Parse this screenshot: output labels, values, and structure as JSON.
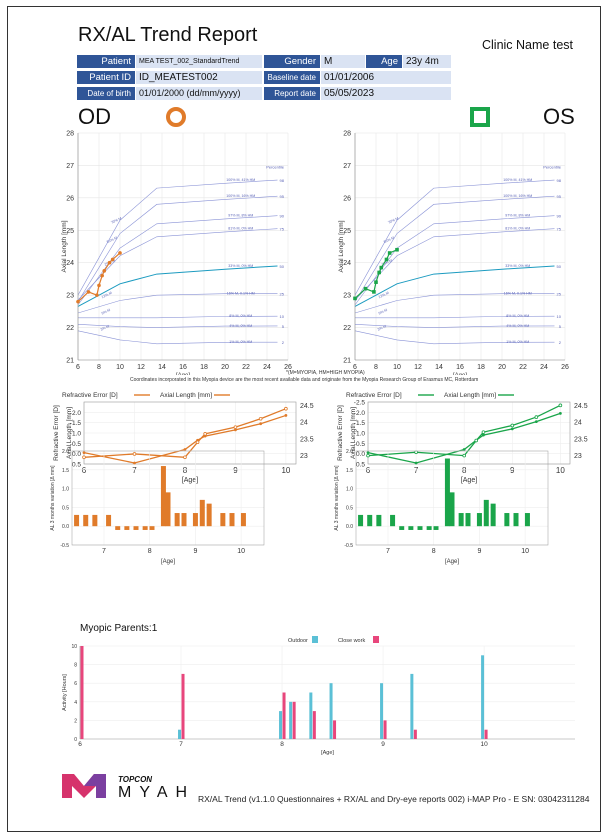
{
  "title": "RX/AL Trend Report",
  "clinic": "Clinic Name test",
  "info": {
    "patient_label": "Patient",
    "patient_value": "MEA TEST_002_StandardTrend",
    "gender_label": "Gender",
    "gender_value": "M",
    "age_label": "Age",
    "age_value": "23y 4m",
    "patient_id_label": "Patient ID",
    "patient_id_value": "ID_MEATEST002",
    "baseline_label": "Baseline date",
    "baseline_value": "01/01/2006",
    "dob_label": "Date of birth",
    "dob_value": "01/01/2000 (dd/mm/yyyy)",
    "report_label": "Report date",
    "report_value": "05/05/2023"
  },
  "eyes": {
    "od": "OD",
    "os": "OS"
  },
  "percentile_header": "Percentile",
  "footnote1": "*(M=MYOPIA, HM=HIGH MYOPIA)",
  "footnote2": "Coordinates incorporated in this Myopia device are the most recent available data and originate from the Myopia Research Group of Erasmus MC, Rotterdam",
  "labels": {
    "age": "[Age]",
    "axial": "Axial Length [mm]",
    "refractive": "Refractive Error [D]",
    "axial_mm": "Axial Length [mm]",
    "legend_re": "Refractive Error [D]",
    "legend_al": "Axial Length [mm]",
    "al_var": "AL 3 months variation [Δ mm]",
    "myopic_parents": "Myopic Parents:1",
    "activity": "Activity [Hours]",
    "outdoor": "Outdoor",
    "close_work": "Close work"
  },
  "footer": {
    "brand": "TOPCON",
    "logo": "MYAH",
    "text": "RX/AL Trend (v1.1.0 Questionnaires + RX/AL and Dry-eye reports 002) i-MAP Pro - E SN: 03042311284"
  },
  "chart_data": [
    {
      "type": "line",
      "name": "od-growth",
      "eye": "OD",
      "color": "#e07b2a",
      "xlabel": "[Age]",
      "ylabel": "Axial Length [mm]",
      "xlim": [
        6,
        26
      ],
      "ylim": [
        21,
        28
      ],
      "xticks": [
        6,
        8,
        10,
        12,
        14,
        16,
        18,
        20,
        22,
        24,
        26
      ],
      "yticks": [
        21,
        22,
        23,
        24,
        25,
        26,
        27,
        28
      ],
      "percentiles": [
        98,
        95,
        90,
        75,
        50,
        25,
        10,
        5,
        2
      ],
      "percentile_labels_right": [
        "100% M, 41% HM",
        "100% M, 16% HM",
        "97% M, 8% HM",
        "81% M, 0% HM",
        "33% M, 0% HM",
        "16% M, 0.1% HM",
        "8% M, 0% HM",
        "4% M, 0% HM",
        "1% M, 0% HM"
      ],
      "percentile_labels_left": [
        "70% M",
        "51% M",
        "25% M",
        "12% M",
        "9% M",
        "3% M"
      ],
      "series": [
        {
          "name": "Measured",
          "x": [
            6,
            7,
            7.8,
            8,
            8.3,
            8.5,
            9,
            9.3,
            10
          ],
          "y": [
            22.8,
            23.1,
            23.0,
            23.3,
            23.6,
            23.75,
            24.0,
            24.1,
            24.3
          ]
        }
      ]
    },
    {
      "type": "line",
      "name": "os-growth",
      "eye": "OS",
      "color": "#1aa54a",
      "xlabel": "[Age]",
      "ylabel": "Axial Length [mm]",
      "xlim": [
        6,
        26
      ],
      "ylim": [
        21,
        28
      ],
      "xticks": [
        6,
        8,
        10,
        12,
        14,
        16,
        18,
        20,
        22,
        24,
        26
      ],
      "yticks": [
        21,
        22,
        23,
        24,
        25,
        26,
        27,
        28
      ],
      "percentiles": [
        98,
        95,
        90,
        75,
        50,
        25,
        10,
        5,
        2
      ],
      "percentile_labels_right": [
        "100% M, 41% HM",
        "100% M, 16% HM",
        "97% M, 8% HM",
        "81% M, 0% HM",
        "33% M, 0% HM",
        "16% M, 0.1% HM",
        "8% M, 0% HM",
        "4% M, 0% HM",
        "1% M, 0% HM"
      ],
      "percentile_labels_left": [
        "70% M",
        "51% M",
        "25% M",
        "12% M",
        "9% M",
        "3% M"
      ],
      "series": [
        {
          "name": "Measured",
          "x": [
            6,
            7,
            7.8,
            8,
            8.3,
            8.5,
            9,
            9.3,
            10
          ],
          "y": [
            22.9,
            23.2,
            23.1,
            23.4,
            23.7,
            23.85,
            24.1,
            24.3,
            24.4
          ]
        }
      ]
    },
    {
      "type": "line",
      "name": "od-rx-al",
      "eye": "OD",
      "color": "#e07b2a",
      "xlabel": "[Age]",
      "ylabel": "Refractive Error [D]",
      "y2label": "Axial Length [mm]",
      "xlim": [
        6,
        10.2
      ],
      "ylim": [
        0.5,
        -2.5
      ],
      "y2lim": [
        22.75,
        24.6
      ],
      "xticks": [
        6,
        7,
        8,
        9,
        10
      ],
      "yticks": [
        -2.0,
        -1.5,
        -1.0,
        -0.5,
        0.0,
        0.5
      ],
      "y2ticks": [
        23,
        23.5,
        24,
        24.5
      ],
      "series": [
        {
          "name": "Refractive Error [D]",
          "x": [
            6,
            7,
            8,
            8.25,
            8.4,
            9,
            9.5,
            10
          ],
          "y": [
            -0.05,
            0.45,
            -0.2,
            -0.65,
            -0.85,
            -1.15,
            -1.45,
            -1.85
          ]
        },
        {
          "name": "Axial Length [mm]",
          "x": [
            6,
            7,
            8,
            8.25,
            8.4,
            9,
            9.5,
            10
          ],
          "y": [
            22.95,
            23.05,
            22.95,
            23.4,
            23.65,
            23.85,
            24.1,
            24.4
          ]
        }
      ]
    },
    {
      "type": "line",
      "name": "os-rx-al",
      "eye": "OS",
      "color": "#1aa54a",
      "xlabel": "[Age]",
      "ylabel": "Refractive Error [D]",
      "y2label": "Axial Length [mm]",
      "xlim": [
        6,
        10.2
      ],
      "ylim": [
        0.5,
        -2.5
      ],
      "y2lim": [
        22.75,
        24.6
      ],
      "xticks": [
        6,
        7,
        8,
        9,
        10
      ],
      "yticks": [
        -2.5,
        -2.0,
        -1.5,
        -1.0,
        -0.5,
        0.0,
        0.5
      ],
      "y2ticks": [
        23,
        23.5,
        24,
        24.5
      ],
      "series": [
        {
          "name": "Refractive Error [D]",
          "x": [
            6,
            7,
            8,
            8.25,
            8.4,
            9,
            9.5,
            10
          ],
          "y": [
            -0.05,
            0.45,
            -0.2,
            -0.65,
            -0.9,
            -1.2,
            -1.55,
            -1.95
          ]
        },
        {
          "name": "Axial Length [mm]",
          "x": [
            6,
            7,
            8,
            8.25,
            8.4,
            9,
            9.5,
            10
          ],
          "y": [
            23.0,
            23.1,
            23.0,
            23.45,
            23.7,
            23.9,
            24.15,
            24.5
          ]
        }
      ]
    },
    {
      "type": "bar",
      "name": "od-al-variation",
      "eye": "OD",
      "color": "#e07b2a",
      "xlabel": "[Age]",
      "ylabel": "AL 3 months variation [Δ mm]",
      "xlim": [
        6.3,
        10.5
      ],
      "ylim": [
        -0.5,
        2.0
      ],
      "xticks": [
        7,
        8,
        9,
        10
      ],
      "yticks": [
        -0.5,
        0.0,
        0.5,
        1.0,
        1.5,
        2.0
      ],
      "x": [
        6.4,
        6.6,
        6.8,
        7.1,
        7.3,
        7.5,
        7.7,
        7.9,
        8.05,
        8.3,
        8.4,
        8.6,
        8.75,
        9.0,
        9.15,
        9.3,
        9.6,
        9.8,
        10.05
      ],
      "values": [
        0.3,
        0.3,
        0.3,
        0.3,
        -0.1,
        -0.1,
        -0.1,
        -0.1,
        -0.1,
        1.6,
        0.9,
        0.35,
        0.35,
        0.35,
        0.7,
        0.6,
        0.35,
        0.35,
        0.35
      ]
    },
    {
      "type": "bar",
      "name": "os-al-variation",
      "eye": "OS",
      "color": "#1aa54a",
      "xlabel": "[Age]",
      "ylabel": "AL 3 months variation [Δ mm]",
      "xlim": [
        6.3,
        10.5
      ],
      "ylim": [
        -0.5,
        2.0
      ],
      "xticks": [
        7,
        8,
        9,
        10
      ],
      "yticks": [
        -0.5,
        0.0,
        0.5,
        1.0,
        1.5,
        2.0
      ],
      "x": [
        6.4,
        6.6,
        6.8,
        7.1,
        7.3,
        7.5,
        7.7,
        7.9,
        8.05,
        8.3,
        8.4,
        8.6,
        8.75,
        9.0,
        9.15,
        9.3,
        9.6,
        9.8,
        10.05
      ],
      "values": [
        0.3,
        0.3,
        0.3,
        0.3,
        -0.1,
        -0.1,
        -0.1,
        -0.1,
        -0.1,
        1.8,
        0.9,
        0.35,
        0.35,
        0.35,
        0.7,
        0.6,
        0.35,
        0.35,
        0.35
      ]
    },
    {
      "type": "bar",
      "name": "activity",
      "xlabel": "[Age]",
      "ylabel": "Activity [Hours]",
      "xlim": [
        6,
        10.9
      ],
      "ylim": [
        0,
        10
      ],
      "xticks": [
        6,
        7,
        8,
        9,
        10
      ],
      "yticks": [
        0,
        2,
        4,
        6,
        8,
        10
      ],
      "categories": [
        6,
        7,
        8,
        8.1,
        8.3,
        8.5,
        9,
        9.3,
        10
      ],
      "series": [
        {
          "name": "Outdoor",
          "color": "#5bc0d6",
          "values": [
            0,
            1,
            3,
            4,
            5,
            6,
            6,
            7,
            9
          ]
        },
        {
          "name": "Close work",
          "color": "#e8467c",
          "values": [
            10,
            7,
            5,
            4,
            3,
            2,
            2,
            1,
            1
          ]
        }
      ]
    }
  ]
}
